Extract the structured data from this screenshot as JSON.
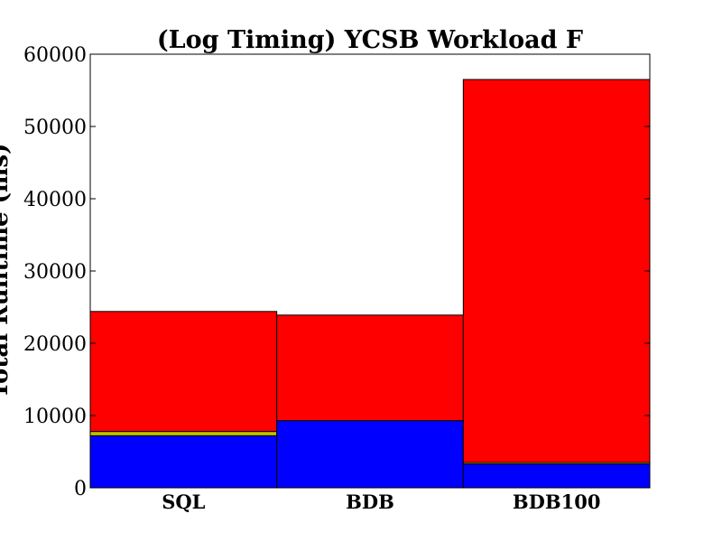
{
  "chart_data": {
    "type": "bar",
    "stacked": true,
    "title": "(Log Timing) YCSB Workload F",
    "xlabel": "",
    "ylabel": "Total Runtime (ms)",
    "categories": [
      "SQL",
      "BDB",
      "BDB100"
    ],
    "ylim": [
      0,
      60000
    ],
    "yticks": [
      0,
      10000,
      20000,
      30000,
      40000,
      50000,
      60000
    ],
    "series": [
      {
        "name": "blue segment",
        "color": "#0000ff",
        "values": [
          7200,
          9300,
          3300
        ]
      },
      {
        "name": "olive segment",
        "color": "#bfbf00",
        "values": [
          600,
          0,
          200
        ]
      },
      {
        "name": "red segment",
        "color": "#ff0000",
        "values": [
          16600,
          14600,
          53000
        ]
      }
    ],
    "grid": false
  }
}
